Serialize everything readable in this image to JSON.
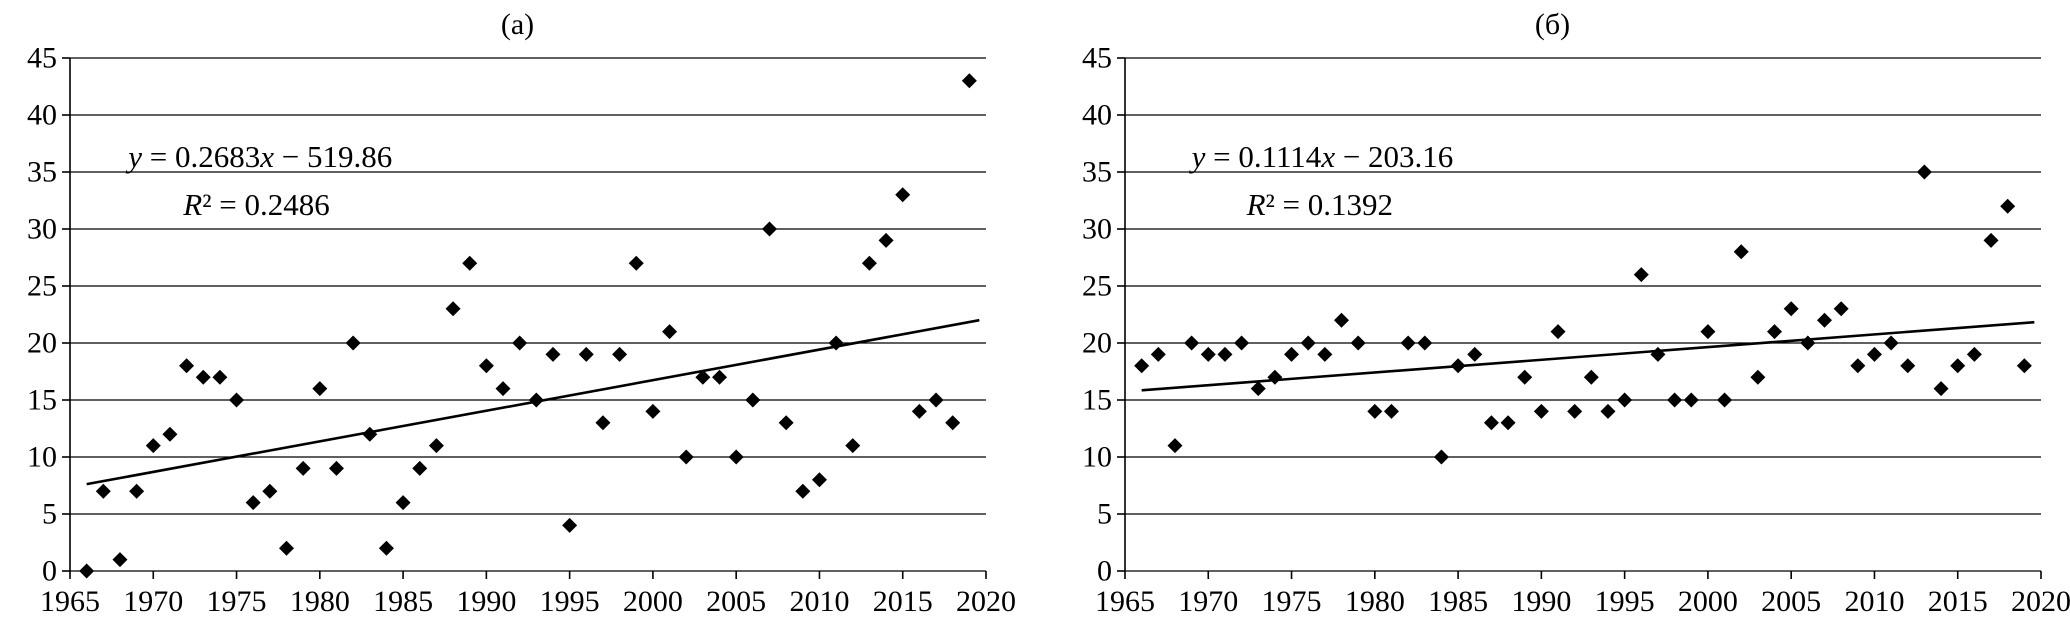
{
  "figure": {
    "background": "#ffffff",
    "text_color": "#000000",
    "grid_color": "#000000"
  },
  "chart_data": [
    {
      "type": "scatter",
      "title": "(а)",
      "xlabel": "",
      "ylabel": "",
      "xlim": [
        1965,
        2020
      ],
      "ylim": [
        0,
        45
      ],
      "x_ticks": [
        1965,
        1970,
        1975,
        1980,
        1985,
        1990,
        1995,
        2000,
        2005,
        2010,
        2015,
        2020
      ],
      "y_ticks": [
        0,
        5,
        10,
        15,
        20,
        25,
        30,
        35,
        40,
        45
      ],
      "grid": "horizontal",
      "legend": "none",
      "marker": "diamond",
      "marker_color": "#000000",
      "points": [
        [
          1966,
          0
        ],
        [
          1967,
          7
        ],
        [
          1968,
          1
        ],
        [
          1969,
          7
        ],
        [
          1970,
          11
        ],
        [
          1971,
          12
        ],
        [
          1972,
          18
        ],
        [
          1973,
          17
        ],
        [
          1974,
          17
        ],
        [
          1975,
          15
        ],
        [
          1976,
          6
        ],
        [
          1977,
          7
        ],
        [
          1978,
          2
        ],
        [
          1979,
          9
        ],
        [
          1980,
          16
        ],
        [
          1981,
          9
        ],
        [
          1982,
          20
        ],
        [
          1983,
          12
        ],
        [
          1984,
          2
        ],
        [
          1985,
          6
        ],
        [
          1986,
          9
        ],
        [
          1987,
          11
        ],
        [
          1988,
          23
        ],
        [
          1989,
          27
        ],
        [
          1990,
          18
        ],
        [
          1991,
          16
        ],
        [
          1992,
          20
        ],
        [
          1993,
          15
        ],
        [
          1994,
          19
        ],
        [
          1995,
          4
        ],
        [
          1996,
          19
        ],
        [
          1997,
          13
        ],
        [
          1998,
          19
        ],
        [
          1999,
          27
        ],
        [
          2000,
          14
        ],
        [
          2001,
          21
        ],
        [
          2002,
          10
        ],
        [
          2003,
          17
        ],
        [
          2004,
          17
        ],
        [
          2005,
          10
        ],
        [
          2006,
          15
        ],
        [
          2007,
          30
        ],
        [
          2008,
          13
        ],
        [
          2009,
          7
        ],
        [
          2010,
          8
        ],
        [
          2011,
          20
        ],
        [
          2012,
          11
        ],
        [
          2013,
          27
        ],
        [
          2014,
          29
        ],
        [
          2015,
          33
        ],
        [
          2016,
          14
        ],
        [
          2017,
          15
        ],
        [
          2018,
          13
        ],
        [
          2019,
          43
        ]
      ],
      "trendline": {
        "slope": 0.2683,
        "intercept": -519.86,
        "x_start": 1966,
        "x_end": 2019.6,
        "color": "#000000"
      },
      "annotations": [
        {
          "text": "y = 0.2683x − 519.86",
          "x": 1968.5,
          "y": 36.4
        },
        {
          "text": "R² = 0.2486",
          "x": 1971.8,
          "y": 32.2
        }
      ]
    },
    {
      "type": "scatter",
      "title": "(б)",
      "xlabel": "",
      "ylabel": "",
      "xlim": [
        1965,
        2020
      ],
      "ylim": [
        0,
        45
      ],
      "x_ticks": [
        1965,
        1970,
        1975,
        1980,
        1985,
        1990,
        1995,
        2000,
        2005,
        2010,
        2015,
        2020
      ],
      "y_ticks": [
        0,
        5,
        10,
        15,
        20,
        25,
        30,
        35,
        40,
        45
      ],
      "grid": "horizontal",
      "legend": "none",
      "marker": "diamond",
      "marker_color": "#000000",
      "points": [
        [
          1966,
          18
        ],
        [
          1967,
          19
        ],
        [
          1968,
          11
        ],
        [
          1969,
          20
        ],
        [
          1970,
          19
        ],
        [
          1971,
          19
        ],
        [
          1972,
          20
        ],
        [
          1973,
          16
        ],
        [
          1974,
          17
        ],
        [
          1975,
          19
        ],
        [
          1976,
          20
        ],
        [
          1977,
          19
        ],
        [
          1978,
          22
        ],
        [
          1979,
          20
        ],
        [
          1980,
          14
        ],
        [
          1981,
          14
        ],
        [
          1982,
          20
        ],
        [
          1983,
          20
        ],
        [
          1984,
          10
        ],
        [
          1985,
          18
        ],
        [
          1986,
          19
        ],
        [
          1987,
          13
        ],
        [
          1988,
          13
        ],
        [
          1989,
          17
        ],
        [
          1990,
          14
        ],
        [
          1991,
          21
        ],
        [
          1992,
          14
        ],
        [
          1993,
          17
        ],
        [
          1994,
          14
        ],
        [
          1995,
          15
        ],
        [
          1996,
          26
        ],
        [
          1997,
          19
        ],
        [
          1998,
          15
        ],
        [
          1999,
          15
        ],
        [
          2000,
          21
        ],
        [
          2001,
          15
        ],
        [
          2002,
          28
        ],
        [
          2003,
          17
        ],
        [
          2004,
          21
        ],
        [
          2005,
          23
        ],
        [
          2006,
          20
        ],
        [
          2007,
          22
        ],
        [
          2008,
          23
        ],
        [
          2009,
          18
        ],
        [
          2010,
          19
        ],
        [
          2011,
          20
        ],
        [
          2012,
          18
        ],
        [
          2013,
          35
        ],
        [
          2014,
          16
        ],
        [
          2015,
          18
        ],
        [
          2016,
          19
        ],
        [
          2017,
          29
        ],
        [
          2018,
          32
        ],
        [
          2019,
          18
        ]
      ],
      "trendline": {
        "slope": 0.1114,
        "intercept": -203.16,
        "x_start": 1966,
        "x_end": 2019.6,
        "color": "#000000"
      },
      "annotations": [
        {
          "text": "y = 0.1114x − 203.16",
          "x": 1969.0,
          "y": 36.4
        },
        {
          "text": "R² = 0.1392",
          "x": 1972.3,
          "y": 32.2
        }
      ]
    }
  ]
}
